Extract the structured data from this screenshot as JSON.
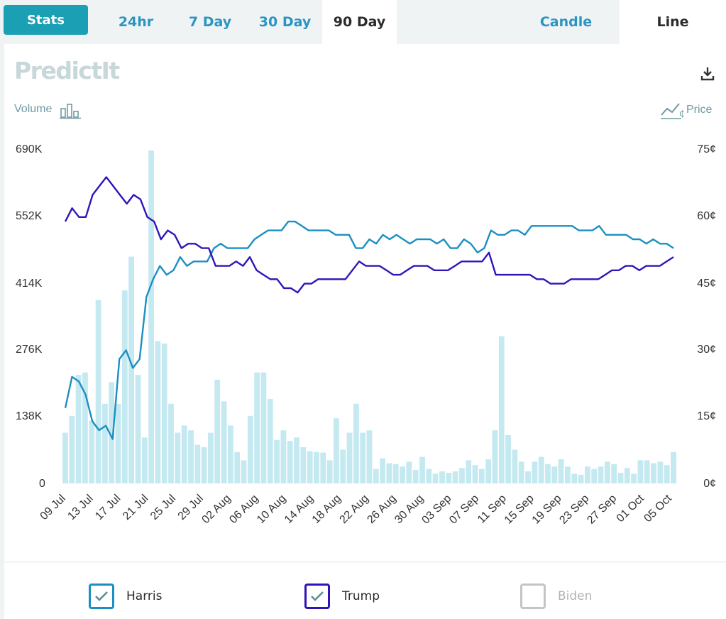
{
  "tabs": {
    "stats": "Stats",
    "ranges": [
      {
        "label": "24hr",
        "active": false
      },
      {
        "label": "7 Day",
        "active": false
      },
      {
        "label": "30 Day",
        "active": false
      },
      {
        "label": "90 Day",
        "active": true
      }
    ],
    "modes": [
      {
        "label": "Candle",
        "active": false
      },
      {
        "label": "Line",
        "active": true
      }
    ]
  },
  "logo_text": "PredictIt",
  "volume_label": "Volume",
  "price_label": "Price",
  "colors": {
    "harris": "#1b8fc2",
    "trump": "#3213b8",
    "volume": "#c5e9f1",
    "biden": "#c4c4c4"
  },
  "chart_data": {
    "type": "line",
    "x_ticks": [
      "09 Jul",
      "13 Jul",
      "17 Jul",
      "21 Jul",
      "25 Jul",
      "29 Jul",
      "02 Aug",
      "06 Aug",
      "10 Aug",
      "14 Aug",
      "18 Aug",
      "22 Aug",
      "26 Aug",
      "30 Aug",
      "03 Sep",
      "07 Sep",
      "11 Sep",
      "15 Sep",
      "19 Sep",
      "23 Sep",
      "27 Sep",
      "01 Oct",
      "05 Oct"
    ],
    "y_left": {
      "label": "Volume",
      "ticks": [
        "0",
        "138K",
        "276K",
        "414K",
        "552K",
        "690K"
      ],
      "range": [
        0,
        690000
      ]
    },
    "y_right": {
      "label": "Price",
      "ticks": [
        "0¢",
        "15¢",
        "30¢",
        "45¢",
        "60¢",
        "75¢"
      ],
      "range": [
        0,
        75
      ]
    },
    "start_date": "09 Jul",
    "volume": [
      105000,
      140000,
      225000,
      230000,
      130000,
      380000,
      165000,
      210000,
      165000,
      400000,
      470000,
      225000,
      95000,
      690000,
      295000,
      290000,
      165000,
      105000,
      120000,
      110000,
      80000,
      75000,
      105000,
      215000,
      170000,
      120000,
      65000,
      48000,
      140000,
      230000,
      230000,
      175000,
      90000,
      110000,
      88000,
      95000,
      75000,
      67000,
      65000,
      64000,
      48000,
      135000,
      70000,
      105000,
      165000,
      105000,
      110000,
      30000,
      52000,
      42000,
      40000,
      35000,
      45000,
      28000,
      55000,
      30000,
      20000,
      25000,
      22000,
      25000,
      32000,
      48000,
      38000,
      30000,
      50000,
      110000,
      305000,
      100000,
      70000,
      45000,
      25000,
      45000,
      55000,
      40000,
      35000,
      50000,
      35000,
      20000,
      18000,
      35000,
      30000,
      35000,
      45000,
      40000,
      22000,
      32000,
      20000,
      48000,
      48000,
      42000,
      45000,
      38000,
      65000
    ],
    "series": [
      {
        "name": "Harris",
        "values": [
          17,
          24,
          23,
          20,
          14,
          12,
          13,
          10,
          28,
          30,
          26,
          28,
          42,
          46,
          49,
          47,
          48,
          51,
          49,
          50,
          50,
          50,
          53,
          54,
          53,
          53,
          53,
          53,
          55,
          56,
          57,
          57,
          57,
          59,
          59,
          58,
          57,
          57,
          57,
          57,
          56,
          56,
          56,
          53,
          53,
          55,
          54,
          56,
          55,
          56,
          55,
          54,
          55,
          55,
          55,
          54,
          55,
          53,
          53,
          55,
          54,
          52,
          53,
          57,
          56,
          56,
          57,
          57,
          56,
          58,
          58,
          58,
          58,
          58,
          58,
          58,
          57,
          57,
          57,
          58,
          56,
          56,
          56,
          56,
          55,
          55,
          54,
          55,
          54,
          54,
          53
        ]
      },
      {
        "name": "Trump",
        "values": [
          59,
          62,
          60,
          60,
          65,
          67,
          69,
          67,
          65,
          63,
          65,
          64,
          60,
          59,
          55,
          57,
          56,
          53,
          54,
          54,
          53,
          53,
          49,
          49,
          49,
          50,
          49,
          51,
          48,
          47,
          46,
          46,
          44,
          44,
          43,
          45,
          45,
          46,
          46,
          46,
          46,
          46,
          48,
          50,
          49,
          49,
          49,
          48,
          47,
          47,
          48,
          49,
          49,
          49,
          48,
          48,
          48,
          49,
          50,
          50,
          50,
          50,
          52,
          47,
          47,
          47,
          47,
          47,
          47,
          46,
          46,
          45,
          45,
          45,
          46,
          46,
          46,
          46,
          46,
          47,
          48,
          48,
          49,
          49,
          48,
          49,
          49,
          49,
          50,
          51
        ]
      },
      {
        "name": "Biden",
        "values": []
      }
    ]
  },
  "legend": [
    {
      "name": "Harris",
      "checked": true
    },
    {
      "name": "Trump",
      "checked": true
    },
    {
      "name": "Biden",
      "checked": false
    }
  ]
}
